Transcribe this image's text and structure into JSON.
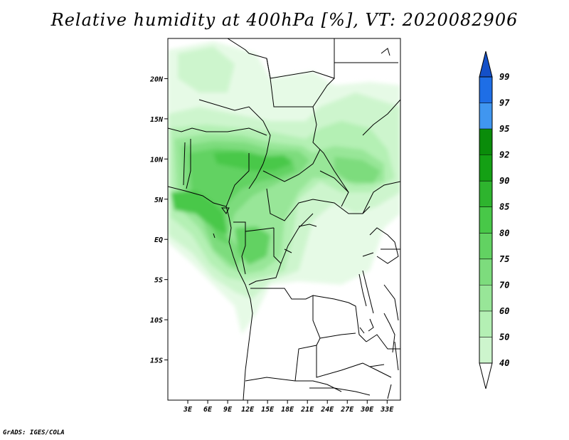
{
  "title": "Relative humidity at 400hPa [%], VT: 2020082906",
  "credit": "GrADS: IGES/COLA",
  "map": {
    "lon_range": [
      0,
      35
    ],
    "lat_range": [
      -20,
      25
    ],
    "lon_ticks": [
      "3E",
      "6E",
      "9E",
      "12E",
      "15E",
      "18E",
      "21E",
      "24E",
      "27E",
      "30E",
      "33E"
    ],
    "lat_ticks": [
      "20N",
      "15N",
      "10N",
      "5N",
      "EQ",
      "5S",
      "10S",
      "15S"
    ]
  },
  "colorbar": {
    "levels": [
      "40",
      "50",
      "60",
      "70",
      "75",
      "80",
      "85",
      "90",
      "92",
      "95",
      "97",
      "99"
    ],
    "colors": [
      "#e6fae6",
      "#cdf5cd",
      "#b4f0b4",
      "#98e698",
      "#7ddc7d",
      "#62d262",
      "#48c848",
      "#2eb42e",
      "#14a014",
      "#0a8c0a",
      "#4096f0",
      "#1e6ee6",
      "#1450c8"
    ]
  }
}
